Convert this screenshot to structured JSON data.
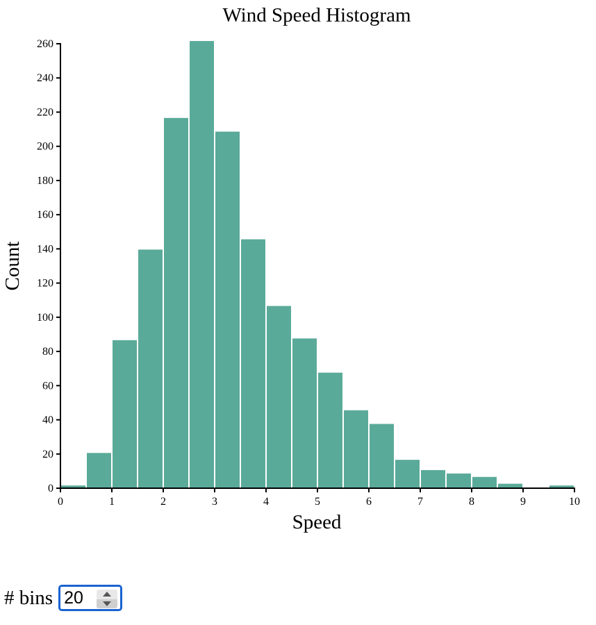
{
  "chart_data": {
    "type": "bar",
    "title": "Wind Speed Histogram",
    "xlabel": "Speed",
    "ylabel": "Count",
    "xlim": [
      0,
      10
    ],
    "ylim": [
      0,
      260
    ],
    "x_ticks": [
      "0",
      "1",
      "2",
      "3",
      "4",
      "5",
      "6",
      "7",
      "8",
      "9",
      "10"
    ],
    "y_ticks": [
      "0",
      "20",
      "40",
      "60",
      "80",
      "100",
      "120",
      "140",
      "160",
      "180",
      "200",
      "220",
      "240",
      "260"
    ],
    "bin_width": 0.5,
    "bins": [
      {
        "x0": 0.0,
        "x1": 0.5,
        "count": 2
      },
      {
        "x0": 0.5,
        "x1": 1.0,
        "count": 21
      },
      {
        "x0": 1.0,
        "x1": 1.5,
        "count": 87
      },
      {
        "x0": 1.5,
        "x1": 2.0,
        "count": 140
      },
      {
        "x0": 2.0,
        "x1": 2.5,
        "count": 217
      },
      {
        "x0": 2.5,
        "x1": 3.0,
        "count": 262
      },
      {
        "x0": 3.0,
        "x1": 3.5,
        "count": 209
      },
      {
        "x0": 3.5,
        "x1": 4.0,
        "count": 146
      },
      {
        "x0": 4.0,
        "x1": 4.5,
        "count": 107
      },
      {
        "x0": 4.5,
        "x1": 5.0,
        "count": 88
      },
      {
        "x0": 5.0,
        "x1": 5.5,
        "count": 68
      },
      {
        "x0": 5.5,
        "x1": 6.0,
        "count": 46
      },
      {
        "x0": 6.0,
        "x1": 6.5,
        "count": 38
      },
      {
        "x0": 6.5,
        "x1": 7.0,
        "count": 17
      },
      {
        "x0": 7.0,
        "x1": 7.5,
        "count": 11
      },
      {
        "x0": 7.5,
        "x1": 8.0,
        "count": 9
      },
      {
        "x0": 8.0,
        "x1": 8.5,
        "count": 7
      },
      {
        "x0": 8.5,
        "x1": 9.0,
        "count": 3
      },
      {
        "x0": 9.0,
        "x1": 9.5,
        "count": 0
      },
      {
        "x0": 9.5,
        "x1": 10.0,
        "count": 2
      }
    ],
    "colors": {
      "bar": "#5aaa99",
      "bar_stroke": "#ffffff"
    },
    "grid": false
  },
  "controls": {
    "bins_label": "# bins",
    "bins_value": "20"
  }
}
